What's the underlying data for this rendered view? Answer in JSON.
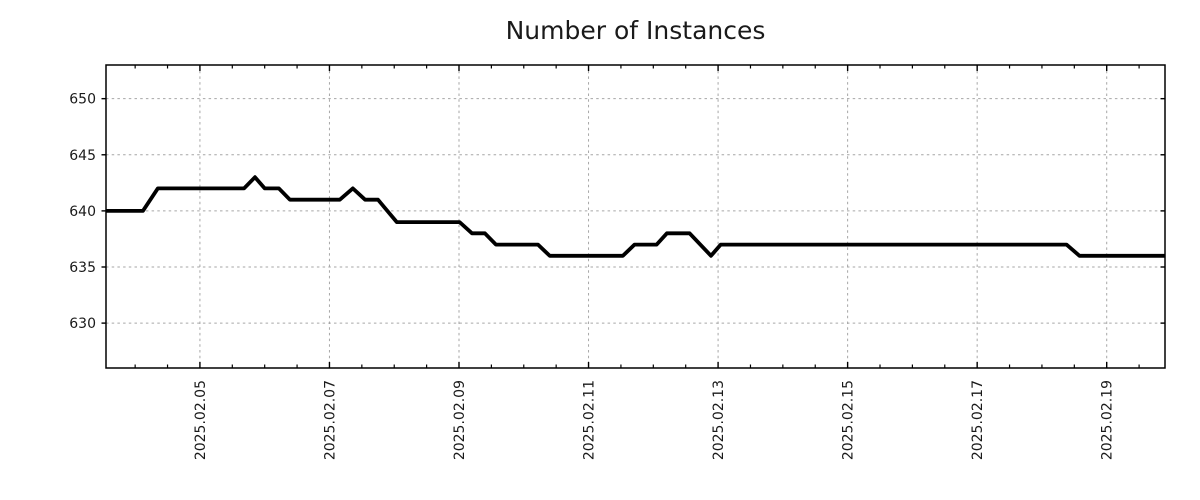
{
  "chart_data": {
    "type": "line",
    "title": "Number of Instances",
    "xlabel": "",
    "ylabel": "",
    "x_unit": "time, fractional day of February 2025 (e.g. 5.5 = 2025-02-05 12:00)",
    "xlim": [
      3.55,
      19.9
    ],
    "ylim": [
      626,
      653
    ],
    "grid": true,
    "legend": "none",
    "x_ticks": {
      "major": [
        5,
        7,
        9,
        11,
        13,
        15,
        17,
        19
      ],
      "major_labels": [
        "2025.02.05",
        "2025.02.07",
        "2025.02.09",
        "2025.02.11",
        "2025.02.13",
        "2025.02.15",
        "2025.02.17",
        "2025.02.19"
      ],
      "minor_step": 0.5,
      "label_rotation_deg": -90
    },
    "y_ticks": {
      "major": [
        630,
        635,
        640,
        645,
        650
      ],
      "major_labels": [
        "630",
        "635",
        "640",
        "645",
        "650"
      ]
    },
    "series": [
      {
        "name": "number-of-instances",
        "color": "#000000",
        "line_width": 3.8,
        "points": [
          [
            3.55,
            640
          ],
          [
            4.12,
            640
          ],
          [
            4.35,
            642
          ],
          [
            5.68,
            642
          ],
          [
            5.85,
            643
          ],
          [
            6.0,
            642
          ],
          [
            6.22,
            642
          ],
          [
            6.39,
            641
          ],
          [
            7.16,
            641
          ],
          [
            7.36,
            642
          ],
          [
            7.55,
            641
          ],
          [
            7.75,
            641
          ],
          [
            8.04,
            639
          ],
          [
            9.01,
            639
          ],
          [
            9.2,
            638
          ],
          [
            9.4,
            638
          ],
          [
            9.57,
            637
          ],
          [
            10.22,
            637
          ],
          [
            10.4,
            636
          ],
          [
            11.53,
            636
          ],
          [
            11.71,
            637
          ],
          [
            12.05,
            637
          ],
          [
            12.21,
            638
          ],
          [
            12.56,
            638
          ],
          [
            12.89,
            636
          ],
          [
            13.04,
            637
          ],
          [
            18.38,
            637
          ],
          [
            18.58,
            636
          ],
          [
            19.9,
            636
          ]
        ]
      }
    ],
    "colors": {
      "line": "#000000",
      "grid": "#a6a6a6",
      "axis": "#000000",
      "text": "#1a1a1a",
      "background": "#ffffff"
    }
  }
}
